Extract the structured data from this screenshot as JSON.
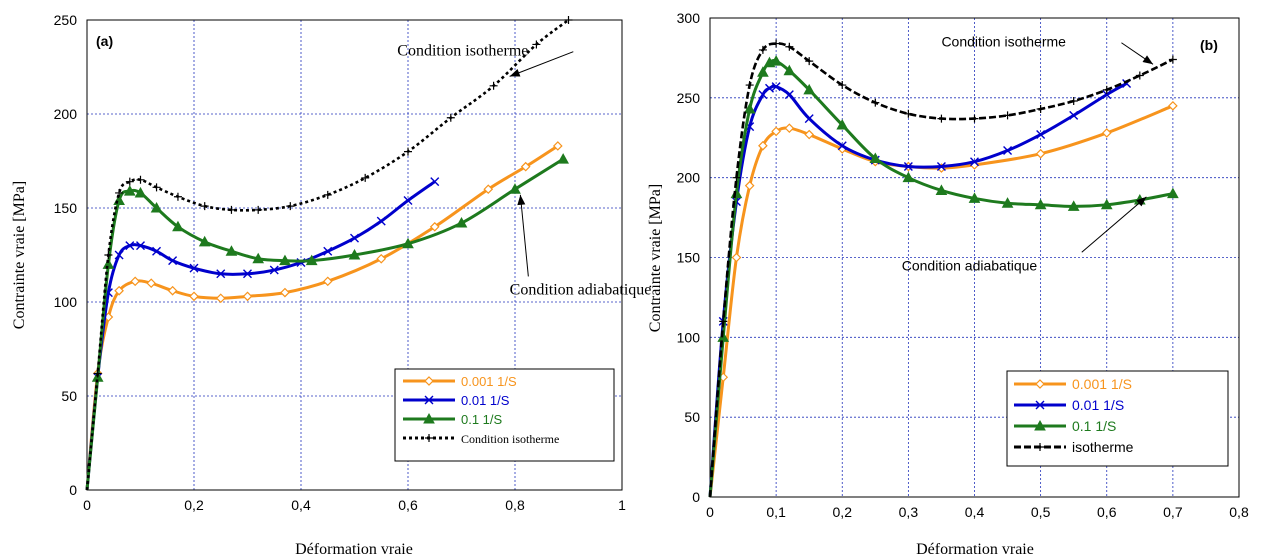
{
  "colors": {
    "orange": "#F7941D",
    "blue": "#0000CC",
    "green": "#1E7A1E",
    "black": "#000000",
    "grid": "#2233BB"
  },
  "chart_data": [
    {
      "type": "line",
      "panel_label": "(a)",
      "xlabel": "Déformation vraie",
      "ylabel": "Contrainte vraie [MPa]",
      "xlim": [
        0,
        1
      ],
      "ylim": [
        0,
        250
      ],
      "xticks": [
        0,
        0.2,
        0.4,
        0.6,
        0.8,
        1
      ],
      "xtick_labels": [
        "0",
        "0,2",
        "0,4",
        "0,6",
        "0,8",
        "1"
      ],
      "yticks": [
        0,
        50,
        100,
        150,
        200,
        250
      ],
      "ytick_labels": [
        "0",
        "50",
        "100",
        "150",
        "200",
        "250"
      ],
      "grid": true,
      "legend_position": "bottom-right",
      "series": [
        {
          "name": "0.001 1/S",
          "color_key": "orange",
          "marker": "diamond",
          "line": "solid",
          "x": [
            0,
            0.02,
            0.04,
            0.06,
            0.09,
            0.12,
            0.16,
            0.2,
            0.25,
            0.3,
            0.37,
            0.45,
            0.55,
            0.65,
            0.75,
            0.82,
            0.88
          ],
          "y": [
            0,
            62,
            92,
            106,
            111,
            110,
            106,
            103,
            102,
            103,
            105,
            111,
            123,
            140,
            160,
            172,
            183
          ]
        },
        {
          "name": "0.01 1/S",
          "color_key": "blue",
          "marker": "x",
          "line": "solid",
          "x": [
            0,
            0.02,
            0.04,
            0.06,
            0.08,
            0.1,
            0.13,
            0.16,
            0.2,
            0.25,
            0.3,
            0.35,
            0.4,
            0.45,
            0.5,
            0.55,
            0.6,
            0.65
          ],
          "y": [
            0,
            60,
            105,
            125,
            130,
            130,
            127,
            122,
            118,
            115,
            115,
            117,
            121,
            127,
            134,
            143,
            154,
            164
          ]
        },
        {
          "name": "0.1 1/S",
          "color_key": "green",
          "marker": "triangle",
          "line": "solid",
          "x": [
            0,
            0.02,
            0.04,
            0.06,
            0.08,
            0.1,
            0.13,
            0.17,
            0.22,
            0.27,
            0.32,
            0.37,
            0.42,
            0.5,
            0.6,
            0.7,
            0.8,
            0.89
          ],
          "y": [
            0,
            60,
            120,
            154,
            159,
            158,
            150,
            140,
            132,
            127,
            123,
            122,
            122,
            125,
            131,
            142,
            160,
            176
          ]
        },
        {
          "name": "Condition isotherme",
          "color_key": "black",
          "marker": "plus",
          "line": "dotted",
          "x": [
            0,
            0.02,
            0.04,
            0.06,
            0.08,
            0.1,
            0.13,
            0.17,
            0.22,
            0.27,
            0.32,
            0.38,
            0.45,
            0.52,
            0.6,
            0.68,
            0.76,
            0.84,
            0.9
          ],
          "y": [
            0,
            62,
            125,
            158,
            164,
            165,
            161,
            156,
            151,
            149,
            149,
            151,
            157,
            166,
            180,
            198,
            215,
            237,
            250
          ]
        }
      ],
      "annotations": [
        {
          "text": "Condition isotherme",
          "x": 0.58,
          "y": 231,
          "arrow_to": [
            0.79,
            220
          ]
        },
        {
          "text": "Condition adiabatique",
          "x": 0.79,
          "y": 104,
          "arrow_to": [
            0.81,
            157
          ]
        }
      ]
    },
    {
      "type": "line",
      "panel_label": "(b)",
      "xlabel": "Déformation vraie",
      "ylabel": "Contrainte vraie  [MPa]",
      "xlim": [
        0,
        0.8
      ],
      "ylim": [
        0,
        300
      ],
      "xticks": [
        0,
        0.1,
        0.2,
        0.3,
        0.4,
        0.5,
        0.6,
        0.7,
        0.8
      ],
      "xtick_labels": [
        "0",
        "0,1",
        "0,2",
        "0,3",
        "0,4",
        "0,5",
        "0,6",
        "0,7",
        "0,8"
      ],
      "yticks": [
        0,
        50,
        100,
        150,
        200,
        250,
        300
      ],
      "ytick_labels": [
        "0",
        "50",
        "100",
        "150",
        "200",
        "250",
        "300"
      ],
      "grid": true,
      "legend_position": "bottom-right",
      "series": [
        {
          "name": "0.001 1/S",
          "color_key": "orange",
          "marker": "diamond",
          "line": "solid",
          "x": [
            0,
            0.02,
            0.04,
            0.06,
            0.08,
            0.1,
            0.12,
            0.15,
            0.2,
            0.25,
            0.3,
            0.35,
            0.4,
            0.5,
            0.6,
            0.7
          ],
          "y": [
            0,
            75,
            150,
            195,
            220,
            229,
            231,
            227,
            218,
            210,
            207,
            206,
            208,
            215,
            228,
            245
          ]
        },
        {
          "name": "0.01 1/S",
          "color_key": "blue",
          "marker": "x",
          "line": "solid",
          "x": [
            0,
            0.02,
            0.04,
            0.06,
            0.08,
            0.09,
            0.1,
            0.12,
            0.15,
            0.2,
            0.25,
            0.3,
            0.35,
            0.4,
            0.45,
            0.5,
            0.55,
            0.6,
            0.63
          ],
          "y": [
            0,
            110,
            185,
            232,
            252,
            256,
            257,
            252,
            237,
            220,
            211,
            207,
            207,
            210,
            217,
            227,
            239,
            252,
            259
          ]
        },
        {
          "name": "0.1 1/S",
          "color_key": "green",
          "marker": "triangle",
          "line": "solid",
          "x": [
            0,
            0.02,
            0.04,
            0.06,
            0.08,
            0.09,
            0.1,
            0.12,
            0.15,
            0.2,
            0.25,
            0.3,
            0.35,
            0.4,
            0.45,
            0.5,
            0.55,
            0.6,
            0.65,
            0.7
          ],
          "y": [
            0,
            100,
            190,
            243,
            266,
            272,
            273,
            267,
            255,
            233,
            212,
            200,
            192,
            187,
            184,
            183,
            182,
            183,
            186,
            190
          ]
        },
        {
          "name": "isotherme",
          "color_key": "black",
          "marker": "plus",
          "line": "dashed",
          "x": [
            0,
            0.02,
            0.04,
            0.06,
            0.08,
            0.1,
            0.12,
            0.15,
            0.2,
            0.25,
            0.3,
            0.35,
            0.4,
            0.45,
            0.5,
            0.55,
            0.6,
            0.65,
            0.7
          ],
          "y": [
            0,
            110,
            200,
            258,
            280,
            284,
            282,
            273,
            258,
            247,
            240,
            237,
            237,
            239,
            243,
            248,
            255,
            264,
            274
          ]
        }
      ],
      "annotations": [
        {
          "text": "Condition isotherme",
          "x": 0.35,
          "y": 282,
          "arrow_to": [
            0.67,
            271
          ]
        },
        {
          "text": "Condition adiabatique",
          "x": 0.29,
          "y": 142,
          "arrow_to": [
            0.66,
            188
          ]
        }
      ]
    }
  ]
}
